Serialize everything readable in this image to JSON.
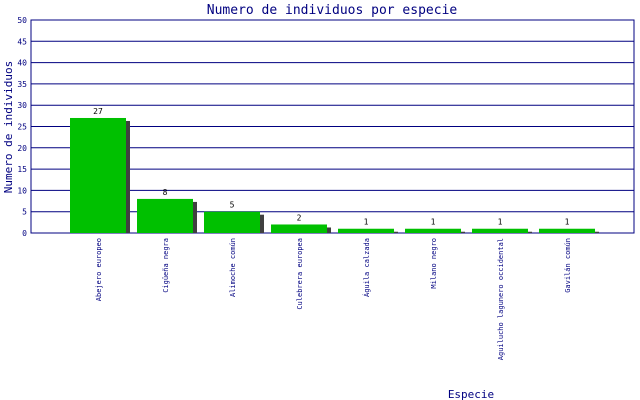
{
  "chart_data": {
    "type": "bar",
    "title": "Numero de individuos por especie",
    "y_label": "Numero de individuos",
    "x_label": "Especie",
    "categories": [
      "Abejero europeo",
      "Cigüeña negra",
      "Alimoche común",
      "Culebrera europea",
      "Águila calzada",
      "Milano negro",
      "Aguilucho lagunero occidental",
      "Gavilán común"
    ],
    "values": [
      27,
      8,
      5,
      2,
      1,
      1,
      1,
      1
    ],
    "color": "#00c000",
    "ylim": [
      0,
      50
    ],
    "yticks": [
      0,
      5,
      10,
      15,
      20,
      25,
      30,
      35,
      40,
      45,
      50
    ],
    "grid": true
  }
}
